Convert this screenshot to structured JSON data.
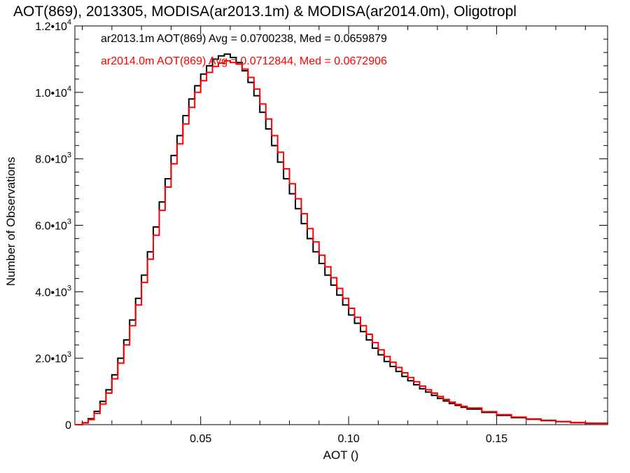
{
  "chart_data": {
    "type": "line",
    "title": "AOT(869), 2013305, MODISA(ar2013.1m) & MODISA(ar2014.0m), Oligotropl",
    "xlabel": "AOT ()",
    "ylabel": "Number of Observations",
    "xlim": [
      0.0075,
      0.1875
    ],
    "ylim": [
      0,
      12000
    ],
    "xticks": [
      0.05,
      0.1,
      0.15
    ],
    "xtick_labels": [
      "0.05",
      "0.10",
      "0.15"
    ],
    "yticks": [
      0,
      2000,
      4000,
      6000,
      8000,
      10000,
      12000
    ],
    "ytick_labels": [
      {
        "mantissa": "0",
        "exponent": ""
      },
      {
        "mantissa": "2.0•10",
        "exponent": "3"
      },
      {
        "mantissa": "4.0•10",
        "exponent": "3"
      },
      {
        "mantissa": "6.0•10",
        "exponent": "3"
      },
      {
        "mantissa": "8.0•10",
        "exponent": "3"
      },
      {
        "mantissa": "1.0•10",
        "exponent": "4"
      },
      {
        "mantissa": "1.2•10",
        "exponent": "4"
      }
    ],
    "grid": false,
    "legend_placement": "top-left",
    "series": [
      {
        "name": "ar2013.1m AOT(869) Avg = 0.0700238, Med = 0.0659879",
        "color": "#000000",
        "x": [
          0.0075,
          0.01,
          0.012,
          0.014,
          0.016,
          0.018,
          0.02,
          0.022,
          0.024,
          0.026,
          0.028,
          0.03,
          0.032,
          0.034,
          0.036,
          0.038,
          0.04,
          0.042,
          0.044,
          0.046,
          0.048,
          0.05,
          0.052,
          0.054,
          0.056,
          0.058,
          0.06,
          0.062,
          0.064,
          0.066,
          0.068,
          0.07,
          0.072,
          0.074,
          0.076,
          0.078,
          0.08,
          0.082,
          0.084,
          0.086,
          0.088,
          0.09,
          0.092,
          0.094,
          0.096,
          0.098,
          0.1,
          0.102,
          0.104,
          0.106,
          0.108,
          0.11,
          0.112,
          0.114,
          0.116,
          0.118,
          0.12,
          0.122,
          0.124,
          0.126,
          0.128,
          0.13,
          0.132,
          0.134,
          0.136,
          0.138,
          0.14,
          0.145,
          0.15,
          0.155,
          0.16,
          0.165,
          0.17,
          0.175,
          0.18,
          0.1875
        ],
        "y": [
          0,
          60,
          180,
          400,
          700,
          1050,
          1500,
          2000,
          2550,
          3150,
          3800,
          4500,
          5200,
          5950,
          6700,
          7400,
          8100,
          8700,
          9300,
          9800,
          10200,
          10550,
          10800,
          11000,
          11100,
          11150,
          11050,
          10900,
          10650,
          10300,
          9900,
          9400,
          8900,
          8400,
          7900,
          7400,
          6950,
          6500,
          6050,
          5600,
          5200,
          4850,
          4500,
          4200,
          3900,
          3600,
          3300,
          3050,
          2800,
          2550,
          2300,
          2100,
          1900,
          1750,
          1600,
          1450,
          1320,
          1200,
          1080,
          980,
          880,
          790,
          710,
          640,
          580,
          520,
          470,
          370,
          280,
          210,
          160,
          120,
          90,
          60,
          40,
          20
        ]
      },
      {
        "name": "ar2014.0m AOT(869) Avg = 0.0712844, Med = 0.0672906",
        "color": "#ff0000",
        "x": [
          0.0075,
          0.01,
          0.012,
          0.014,
          0.016,
          0.018,
          0.02,
          0.022,
          0.024,
          0.026,
          0.028,
          0.03,
          0.032,
          0.034,
          0.036,
          0.038,
          0.04,
          0.042,
          0.044,
          0.046,
          0.048,
          0.05,
          0.052,
          0.054,
          0.056,
          0.058,
          0.06,
          0.062,
          0.064,
          0.066,
          0.068,
          0.07,
          0.072,
          0.074,
          0.076,
          0.078,
          0.08,
          0.082,
          0.084,
          0.086,
          0.088,
          0.09,
          0.092,
          0.094,
          0.096,
          0.098,
          0.1,
          0.102,
          0.104,
          0.106,
          0.108,
          0.11,
          0.112,
          0.114,
          0.116,
          0.118,
          0.12,
          0.122,
          0.124,
          0.126,
          0.128,
          0.13,
          0.132,
          0.134,
          0.136,
          0.138,
          0.14,
          0.145,
          0.15,
          0.155,
          0.16,
          0.165,
          0.17,
          0.175,
          0.18,
          0.1875
        ],
        "y": [
          0,
          50,
          150,
          340,
          620,
          950,
          1380,
          1850,
          2400,
          2980,
          3600,
          4280,
          4980,
          5700,
          6450,
          7150,
          7850,
          8450,
          9050,
          9550,
          10000,
          10350,
          10600,
          10780,
          10880,
          10950,
          10900,
          10850,
          10700,
          10450,
          10100,
          9650,
          9200,
          8700,
          8200,
          7700,
          7250,
          6800,
          6350,
          5900,
          5500,
          5100,
          4750,
          4420,
          4100,
          3800,
          3500,
          3230,
          2980,
          2720,
          2470,
          2250,
          2050,
          1880,
          1720,
          1560,
          1420,
          1290,
          1160,
          1050,
          950,
          850,
          760,
          680,
          610,
          550,
          500,
          390,
          300,
          225,
          170,
          130,
          95,
          65,
          45,
          22
        ]
      }
    ]
  }
}
